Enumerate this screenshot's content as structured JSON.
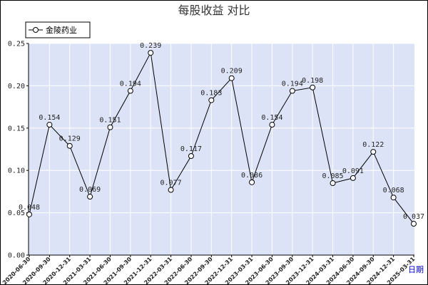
{
  "chart_data": {
    "type": "line",
    "title": "每股收益  对比",
    "x_unit_label": "日期",
    "categories": [
      "2020-06-30",
      "2020-09-30",
      "2020-12-31",
      "2021-03-31",
      "2021-06-30",
      "2021-09-30",
      "2021-12-31",
      "2022-03-31",
      "2022-06-30",
      "2022-09-30",
      "2022-12-31",
      "2023-03-31",
      "2023-06-30",
      "2023-09-30",
      "2023-12-31",
      "2024-03-31",
      "2024-06-30",
      "2024-09-30",
      "2024-12-31",
      "2025-03-31"
    ],
    "series": [
      {
        "name": "金陵药业",
        "color": "#000000",
        "values": [
          0.048,
          0.154,
          0.129,
          0.069,
          0.151,
          0.194,
          0.239,
          0.077,
          0.117,
          0.183,
          0.209,
          0.086,
          0.154,
          0.194,
          0.198,
          0.085,
          0.091,
          0.122,
          0.068,
          0.037
        ],
        "labels": [
          "0.048",
          "0.154",
          "0.129",
          "0.069",
          "0.151",
          "0.194",
          "0.239",
          "0.077",
          "0.117",
          "0.183",
          "0.209",
          "0.086",
          "0.154",
          "0.194",
          "0.198",
          "0.085",
          "0.091",
          "0.122",
          "0.068",
          "0.037"
        ]
      }
    ],
    "y_ticks": [
      "0.00",
      "0.05",
      "0.10",
      "0.15",
      "0.20",
      "0.25"
    ],
    "y_tick_values": [
      0,
      0.05,
      0.1,
      0.15,
      0.2,
      0.25
    ],
    "ylim": [
      0,
      0.25
    ],
    "grid": true,
    "legend_position": "top-left",
    "plot_background": "#dde3f7",
    "grid_color": "#ffffff"
  }
}
